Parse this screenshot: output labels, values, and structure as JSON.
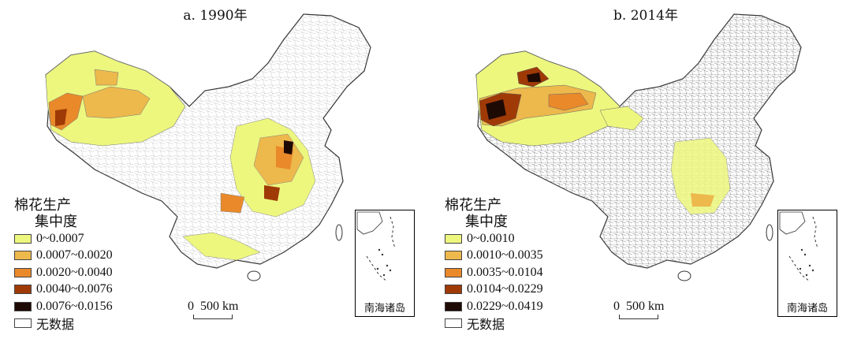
{
  "panels": [
    {
      "id": "a",
      "title": "a. 1990年",
      "legend": {
        "title_line1": "棉花生产",
        "title_line2": "集中度",
        "items": [
          {
            "label": "0~0.0007",
            "color": "#edf77e"
          },
          {
            "label": "0.0007~0.0020",
            "color": "#edb84c"
          },
          {
            "label": "0.0020~0.0040",
            "color": "#e9892a"
          },
          {
            "label": "0.0040~0.0076",
            "color": "#9f3a07"
          },
          {
            "label": "0.0076~0.0156",
            "color": "#1e0a05"
          },
          {
            "label": "无数据",
            "color": "#ffffff"
          }
        ]
      },
      "scale_label": "0  500 km",
      "inset_label": "南海诸岛"
    },
    {
      "id": "b",
      "title": "b. 2014年",
      "legend": {
        "title_line1": "棉花生产",
        "title_line2": "集中度",
        "items": [
          {
            "label": "0~0.0010",
            "color": "#edf77e"
          },
          {
            "label": "0.0010~0.0035",
            "color": "#edb84c"
          },
          {
            "label": "0.0035~0.0104",
            "color": "#e9892a"
          },
          {
            "label": "0.0104~0.0229",
            "color": "#9f3a07"
          },
          {
            "label": "0.0229~0.0419",
            "color": "#1e0a05"
          },
          {
            "label": "无数据",
            "color": "#ffffff"
          }
        ]
      },
      "scale_label": "0  500 km",
      "inset_label": "南海诸岛"
    }
  ]
}
